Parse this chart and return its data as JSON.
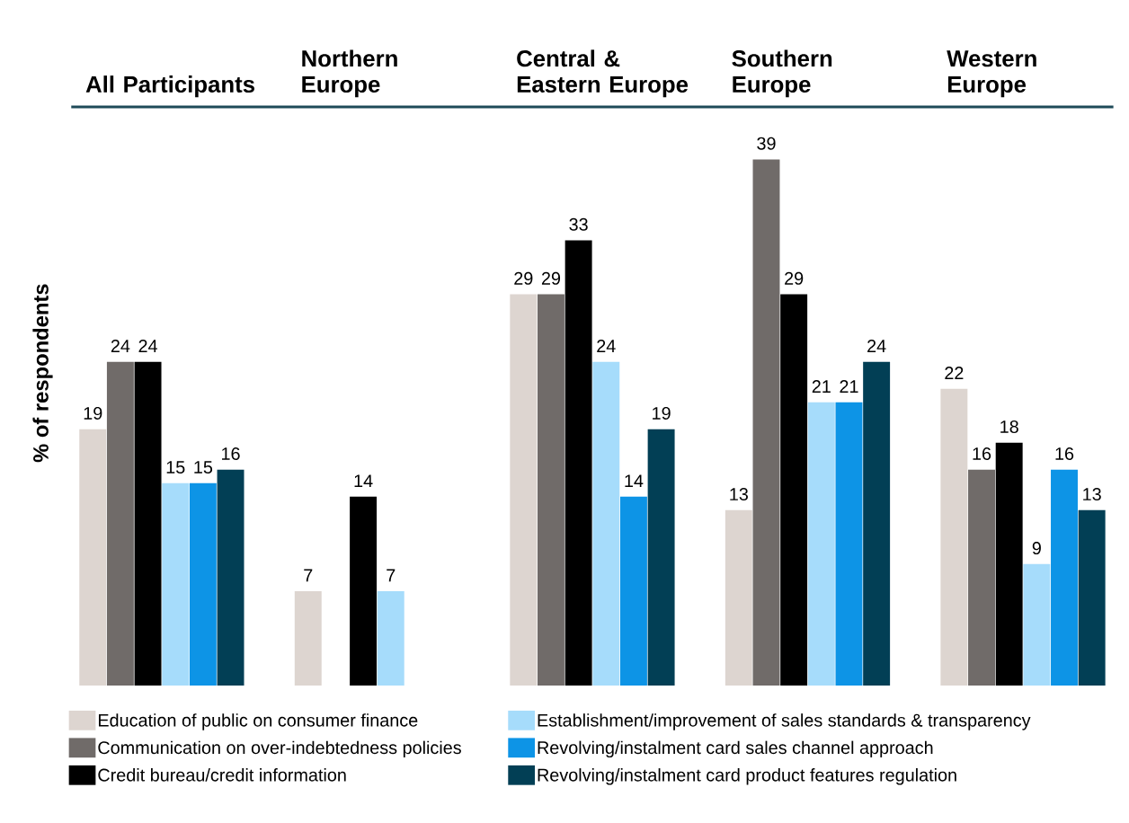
{
  "chart_data": {
    "type": "bar",
    "ylabel": "% of respondents",
    "categories": [
      "All Participants",
      "Northern Europe",
      "Central & Eastern Europe",
      "Southern Europe",
      "Western Europe"
    ],
    "series": [
      {
        "name": "Education of public on consumer finance",
        "color": "#ddd5d0",
        "values": [
          19,
          7,
          29,
          13,
          22
        ]
      },
      {
        "name": "Communication on over-indebtedness policies",
        "color": "#706b69",
        "values": [
          24,
          null,
          29,
          39,
          16
        ]
      },
      {
        "name": "Credit bureau/credit information",
        "color": "#000000",
        "values": [
          24,
          14,
          33,
          29,
          18
        ]
      },
      {
        "name": "Establishment/improvement of sales standards & transparency",
        "color": "#a6dcfb",
        "values": [
          15,
          7,
          24,
          21,
          9
        ]
      },
      {
        "name": "Revolving/instalment card sales channel approach",
        "color": "#0d94e6",
        "values": [
          15,
          null,
          14,
          21,
          16
        ]
      },
      {
        "name": "Revolving/instalment card product features regulation",
        "color": "#023f55",
        "values": [
          16,
          null,
          19,
          24,
          13
        ]
      }
    ],
    "data_labels": true,
    "legend": "bottom"
  }
}
